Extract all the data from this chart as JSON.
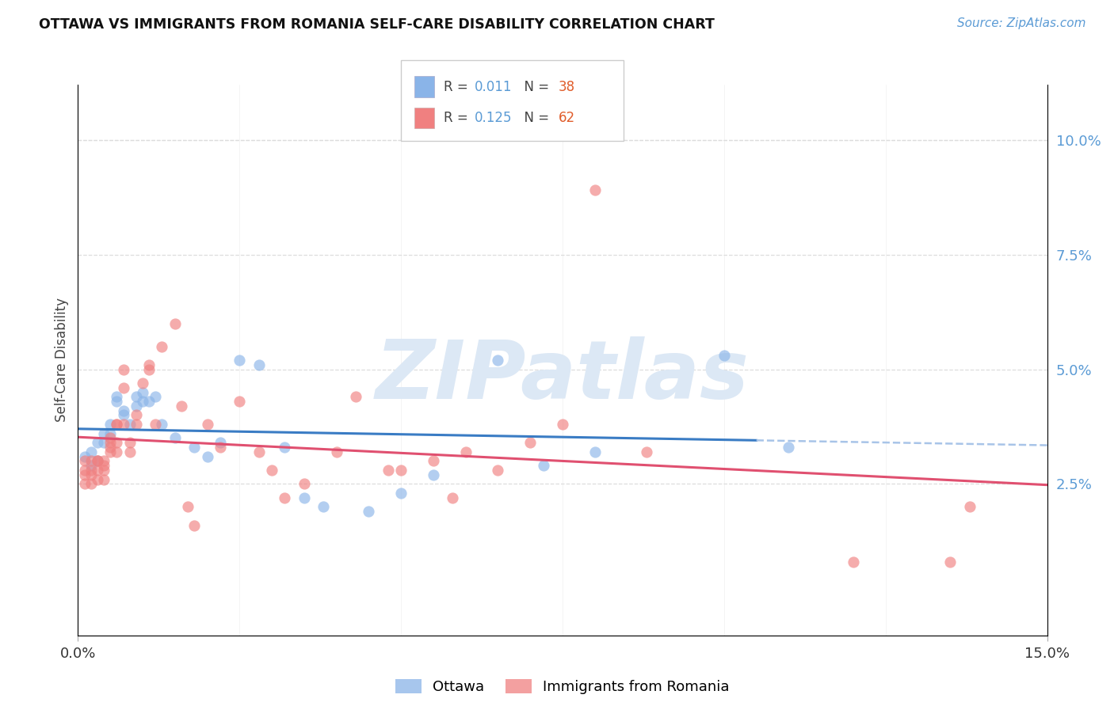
{
  "title": "OTTAWA VS IMMIGRANTS FROM ROMANIA SELF-CARE DISABILITY CORRELATION CHART",
  "source_text": "Source: ZipAtlas.com",
  "ylabel": "Self-Care Disability",
  "xlim": [
    0.0,
    0.15
  ],
  "ylim": [
    -0.008,
    0.112
  ],
  "yticks": [
    0.025,
    0.05,
    0.075,
    0.1
  ],
  "ytick_labels": [
    "2.5%",
    "5.0%",
    "7.5%",
    "10.0%"
  ],
  "xticks": [
    0.0,
    0.15
  ],
  "xtick_labels": [
    "0.0%",
    "15.0%"
  ],
  "legend_labels": [
    "Ottawa",
    "Immigrants from Romania"
  ],
  "legend_R": [
    "0.011",
    "0.125"
  ],
  "legend_N": [
    "38",
    "62"
  ],
  "ottawa_color": "#8ab4e8",
  "romania_color": "#f08080",
  "trend_ottawa_color": "#3a7cc4",
  "trend_romania_color": "#e05070",
  "dashed_line_color": "#a8c4e8",
  "watermark_color": "#dce8f5",
  "ottawa_x": [
    0.001,
    0.002,
    0.002,
    0.003,
    0.003,
    0.004,
    0.004,
    0.005,
    0.005,
    0.006,
    0.006,
    0.007,
    0.007,
    0.008,
    0.009,
    0.009,
    0.01,
    0.01,
    0.011,
    0.012,
    0.013,
    0.015,
    0.018,
    0.02,
    0.022,
    0.025,
    0.028,
    0.032,
    0.035,
    0.038,
    0.045,
    0.05,
    0.055,
    0.065,
    0.072,
    0.08,
    0.1,
    0.11
  ],
  "ottawa_y": [
    0.031,
    0.032,
    0.029,
    0.034,
    0.03,
    0.036,
    0.034,
    0.038,
    0.036,
    0.043,
    0.044,
    0.04,
    0.041,
    0.038,
    0.042,
    0.044,
    0.045,
    0.043,
    0.043,
    0.044,
    0.038,
    0.035,
    0.033,
    0.031,
    0.034,
    0.052,
    0.051,
    0.033,
    0.022,
    0.02,
    0.019,
    0.023,
    0.027,
    0.052,
    0.029,
    0.032,
    0.053,
    0.033
  ],
  "romania_x": [
    0.001,
    0.001,
    0.001,
    0.001,
    0.002,
    0.002,
    0.002,
    0.002,
    0.003,
    0.003,
    0.003,
    0.003,
    0.004,
    0.004,
    0.004,
    0.004,
    0.005,
    0.005,
    0.005,
    0.005,
    0.006,
    0.006,
    0.006,
    0.006,
    0.007,
    0.007,
    0.007,
    0.008,
    0.008,
    0.009,
    0.009,
    0.01,
    0.011,
    0.011,
    0.012,
    0.013,
    0.015,
    0.016,
    0.017,
    0.018,
    0.02,
    0.022,
    0.025,
    0.028,
    0.03,
    0.032,
    0.035,
    0.04,
    0.043,
    0.048,
    0.05,
    0.055,
    0.058,
    0.06,
    0.065,
    0.07,
    0.075,
    0.08,
    0.088,
    0.12,
    0.135,
    0.138
  ],
  "romania_y": [
    0.028,
    0.03,
    0.025,
    0.027,
    0.028,
    0.03,
    0.027,
    0.025,
    0.03,
    0.03,
    0.028,
    0.026,
    0.03,
    0.029,
    0.028,
    0.026,
    0.032,
    0.035,
    0.034,
    0.033,
    0.038,
    0.038,
    0.034,
    0.032,
    0.038,
    0.046,
    0.05,
    0.034,
    0.032,
    0.038,
    0.04,
    0.047,
    0.051,
    0.05,
    0.038,
    0.055,
    0.06,
    0.042,
    0.02,
    0.016,
    0.038,
    0.033,
    0.043,
    0.032,
    0.028,
    0.022,
    0.025,
    0.032,
    0.044,
    0.028,
    0.028,
    0.03,
    0.022,
    0.032,
    0.028,
    0.034,
    0.038,
    0.089,
    0.032,
    0.008,
    0.008,
    0.02
  ]
}
